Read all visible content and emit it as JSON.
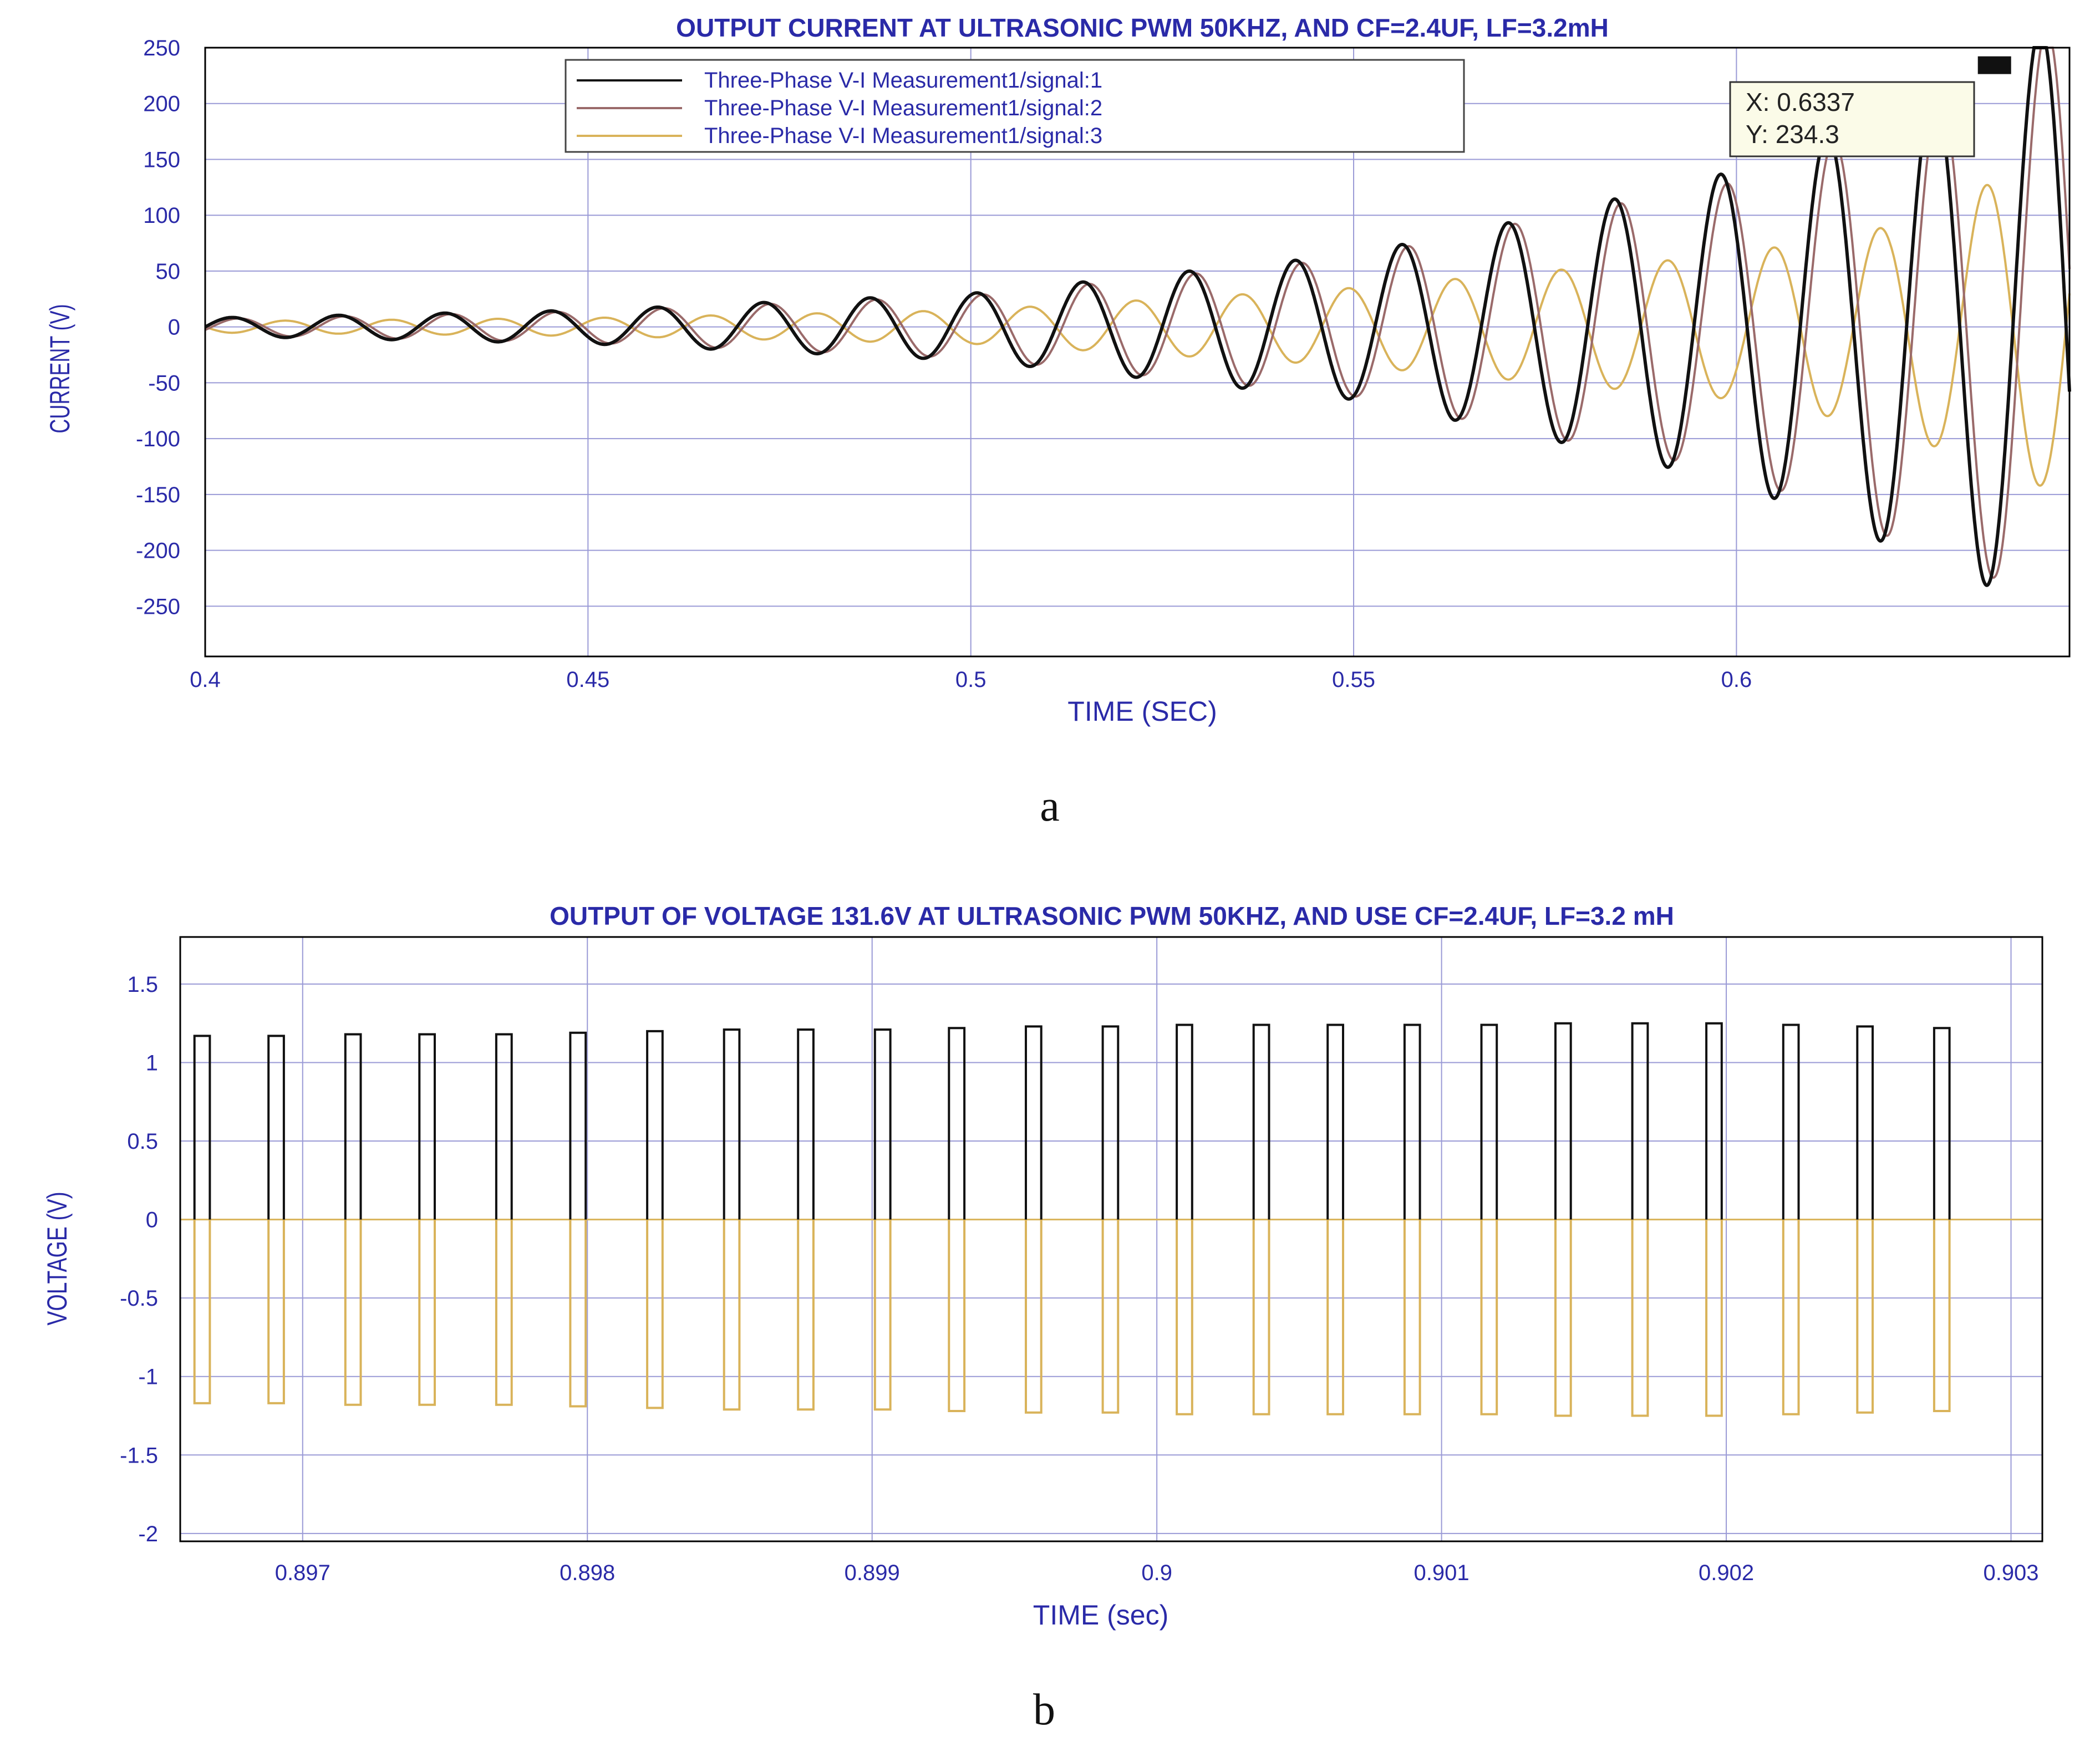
{
  "chart_data": [
    {
      "type": "line",
      "title": "OUTPUT CURRENT AT ULTRASONIC PWM 50KHZ, AND CF=2.4UF, LF=3.2mH",
      "xlabel": "TIME (SEC)",
      "ylabel": "CURRENT (V)",
      "xlim": [
        0.4,
        0.6435
      ],
      "ylim": [
        -295,
        250
      ],
      "xticks": [
        0.4,
        0.45,
        0.5,
        0.55,
        0.6
      ],
      "xtick_labels": [
        "0.4",
        "0.45",
        "0.5",
        "0.55",
        "0.6"
      ],
      "yticks": [
        250,
        200,
        150,
        100,
        50,
        0,
        -50,
        -100,
        -150,
        -200,
        -250
      ],
      "ytick_labels": [
        "250",
        "200",
        "150",
        "100",
        "50",
        "0",
        "-50",
        "-100",
        "-150",
        "-200",
        "-250"
      ],
      "grid": true,
      "legend_position": "top-center",
      "series": [
        {
          "name": "Three-Phase V-I Measurement1/signal:1",
          "color": "#111111",
          "oscillation": "growing",
          "frequency_hz": 72,
          "phase_deg": 0,
          "envelope": {
            "t": [
              0.4,
              0.45,
              0.5,
              0.55,
              0.575,
              0.6,
              0.62,
              0.6337,
              0.6435
            ],
            "amp": [
              8,
              15,
              30,
              65,
              100,
              140,
              195,
              234.3,
              290
            ]
          }
        },
        {
          "name": "Three-Phase V-I Measurement1/signal:2",
          "color": "#9a6a6a",
          "oscillation": "growing",
          "frequency_hz": 72,
          "phase_deg": -22,
          "envelope": {
            "t": [
              0.4,
              0.45,
              0.5,
              0.55,
              0.575,
              0.6,
              0.62,
              0.6337,
              0.6435
            ],
            "amp": [
              7,
              14,
              28,
              62,
              98,
              130,
              188,
              225,
              285
            ]
          }
        },
        {
          "name": "Three-Phase V-I Measurement1/signal:3",
          "color": "#d9b35a",
          "oscillation": "growing",
          "frequency_hz": 72,
          "phase_deg": 180,
          "envelope": {
            "t": [
              0.4,
              0.45,
              0.5,
              0.55,
              0.575,
              0.6,
              0.62,
              0.6337,
              0.6435
            ],
            "amp": [
              5,
              8,
              15,
              35,
              50,
              65,
              90,
              130,
              150
            ]
          }
        }
      ],
      "annotation": {
        "x": 0.6337,
        "y": 234.3,
        "x_label": "X: 0.6337",
        "y_label": "Y: 234.3"
      },
      "panel_label": "a"
    },
    {
      "type": "line",
      "title": "OUTPUT OF VOLTAGE 131.6V AT ULTRASONIC PWM 50KHZ, AND USE CF=2.4UF, LF=3.2 mH",
      "xlabel": "TIME (sec)",
      "ylabel": "VOLTAGE (V)",
      "xlim": [
        0.89657,
        0.90311
      ],
      "ylim": [
        -2.05,
        1.8
      ],
      "xticks": [
        0.897,
        0.898,
        0.899,
        0.9,
        0.901,
        0.902,
        0.903
      ],
      "xtick_labels": [
        "0.897",
        "0.898",
        "0.899",
        "0.9",
        "0.901",
        "0.902",
        "0.903"
      ],
      "yticks": [
        1.5,
        1,
        0.5,
        0,
        -0.5,
        -1,
        -1.5,
        -2
      ],
      "ytick_labels": [
        "1.5",
        "1",
        "0.5",
        "0",
        "-0.5",
        "-1",
        "-1.5",
        "-2"
      ],
      "grid": true,
      "pulse_width_sec": 5.4e-05,
      "series": [
        {
          "color": "#111111",
          "pulse_start": [
            0.89662,
            0.89688,
            0.89715,
            0.89741,
            0.89768,
            0.89794,
            0.89821,
            0.89848,
            0.89874,
            0.89901,
            0.89927,
            0.89954,
            0.89981,
            0.90007,
            0.90034,
            0.9006,
            0.90087,
            0.90114,
            0.9014,
            0.90167,
            0.90193,
            0.9022,
            0.90246,
            0.90273
          ],
          "pulse_value": [
            1.17,
            1.17,
            1.18,
            1.18,
            1.18,
            1.19,
            1.2,
            1.21,
            1.21,
            1.21,
            1.22,
            1.23,
            1.23,
            1.24,
            1.24,
            1.24,
            1.24,
            1.24,
            1.25,
            1.25,
            1.25,
            1.24,
            1.23,
            1.22
          ]
        },
        {
          "color": "#d9b35a",
          "pulse_start": [
            0.89662,
            0.89688,
            0.89715,
            0.89741,
            0.89768,
            0.89794,
            0.89821,
            0.89848,
            0.89874,
            0.89901,
            0.89927,
            0.89954,
            0.89981,
            0.90007,
            0.90034,
            0.9006,
            0.90087,
            0.90114,
            0.9014,
            0.90167,
            0.90193,
            0.9022,
            0.90246,
            0.90273
          ],
          "pulse_value": [
            -1.17,
            -1.17,
            -1.18,
            -1.18,
            -1.18,
            -1.19,
            -1.2,
            -1.21,
            -1.21,
            -1.21,
            -1.22,
            -1.23,
            -1.23,
            -1.24,
            -1.24,
            -1.24,
            -1.24,
            -1.24,
            -1.25,
            -1.25,
            -1.25,
            -1.24,
            -1.23,
            -1.22
          ]
        }
      ],
      "panel_label": "b"
    }
  ]
}
